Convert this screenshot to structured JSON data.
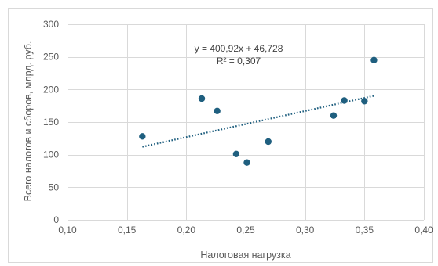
{
  "chart_data": {
    "type": "scatter",
    "title": "",
    "xlabel": "Налоговая нагрузка",
    "ylabel": "Всего налогов и сборов, млрд. руб.",
    "xlim": [
      0.1,
      0.4
    ],
    "ylim": [
      0,
      300
    ],
    "x_ticks": [
      0.1,
      0.15,
      0.2,
      0.25,
      0.3,
      0.35,
      0.4
    ],
    "x_tick_labels": [
      "0,10",
      "0,15",
      "0,20",
      "0,25",
      "0,30",
      "0,35",
      "0,40"
    ],
    "y_ticks": [
      0,
      50,
      100,
      150,
      200,
      250,
      300
    ],
    "y_tick_labels": [
      "0",
      "50",
      "100",
      "150",
      "200",
      "250",
      "300"
    ],
    "grid": "vertical-and-horizontal",
    "legend": "none",
    "marker_color": "#1f5f7f",
    "trendline_color": "#1f5f7f",
    "points": [
      {
        "x": 0.163,
        "y": 128
      },
      {
        "x": 0.213,
        "y": 186
      },
      {
        "x": 0.226,
        "y": 167
      },
      {
        "x": 0.242,
        "y": 101
      },
      {
        "x": 0.251,
        "y": 88
      },
      {
        "x": 0.269,
        "y": 120
      },
      {
        "x": 0.324,
        "y": 160
      },
      {
        "x": 0.333,
        "y": 183
      },
      {
        "x": 0.35,
        "y": 182
      },
      {
        "x": 0.358,
        "y": 245
      }
    ],
    "trendline": {
      "type": "linear",
      "slope": 400.92,
      "intercept": 46.728,
      "x_range": [
        0.163,
        0.358
      ],
      "equation_label": "y = 400,92x + 46,728",
      "r2_label": "R² = 0,307"
    }
  }
}
